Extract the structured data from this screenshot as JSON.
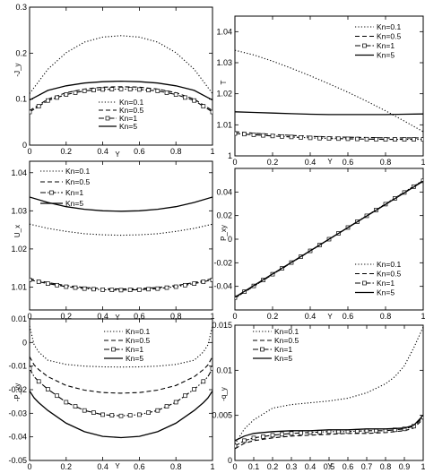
{
  "chart_data": [
    {
      "type": "line",
      "ylabel": "-J_y",
      "xlabel": "Y",
      "xlim": [
        0,
        1
      ],
      "ylim": [
        0,
        0.3
      ],
      "x_ticks": [
        0,
        0.2,
        0.4,
        0.6,
        0.8,
        1
      ],
      "y_ticks": [
        0,
        0.1,
        0.2,
        0.3
      ],
      "x_tick_labels": [
        "0",
        "0.2",
        "0.4",
        "0.6",
        "0.8",
        "1"
      ],
      "y_tick_labels": [
        "0",
        "0.1",
        "0.2",
        "0.3"
      ],
      "legend_position": "bottom-center",
      "series": [
        {
          "name": "Kn=0.1",
          "style": "dotted",
          "x": [
            0,
            0.1,
            0.2,
            0.3,
            0.4,
            0.5,
            0.6,
            0.7,
            0.8,
            0.9,
            1
          ],
          "y": [
            0.112,
            0.165,
            0.201,
            0.224,
            0.235,
            0.238,
            0.235,
            0.224,
            0.201,
            0.165,
            0.112
          ]
        },
        {
          "name": "Kn=0.5",
          "style": "dashed",
          "x": [
            0,
            0.1,
            0.2,
            0.3,
            0.4,
            0.5,
            0.6,
            0.7,
            0.8,
            0.9,
            1
          ],
          "y": [
            0.075,
            0.1,
            0.114,
            0.122,
            0.126,
            0.127,
            0.126,
            0.122,
            0.114,
            0.1,
            0.075
          ]
        },
        {
          "name": "Kn=1",
          "style": "dashdot-square",
          "x": [
            0,
            0.1,
            0.2,
            0.3,
            0.4,
            0.5,
            0.6,
            0.7,
            0.8,
            0.9,
            1
          ],
          "y": [
            0.072,
            0.097,
            0.11,
            0.118,
            0.121,
            0.122,
            0.121,
            0.118,
            0.11,
            0.097,
            0.072
          ]
        },
        {
          "name": "Kn=5",
          "style": "solid",
          "x": [
            0,
            0.1,
            0.2,
            0.3,
            0.4,
            0.5,
            0.6,
            0.7,
            0.8,
            0.9,
            1
          ],
          "y": [
            0.098,
            0.119,
            0.129,
            0.135,
            0.138,
            0.139,
            0.138,
            0.135,
            0.129,
            0.119,
            0.098
          ]
        }
      ]
    },
    {
      "type": "line",
      "ylabel": "T",
      "xlabel": "Y",
      "xlim": [
        0,
        1
      ],
      "ylim": [
        1,
        1.045
      ],
      "x_ticks": [
        0,
        0.2,
        0.4,
        0.6,
        0.8,
        1
      ],
      "y_ticks": [
        1,
        1.01,
        1.02,
        1.03,
        1.04
      ],
      "x_tick_labels": [
        "0",
        "0.2",
        "0.4",
        "0.6",
        "0.8",
        "1"
      ],
      "y_tick_labels": [
        "1",
        "1.01",
        "1.02",
        "1.03",
        "1.04"
      ],
      "legend_position": "top-right",
      "series": [
        {
          "name": "Kn=0.1",
          "style": "dotted",
          "x": [
            0,
            0.1,
            0.2,
            0.3,
            0.4,
            0.5,
            0.6,
            0.7,
            0.8,
            0.9,
            1
          ],
          "y": [
            1.034,
            1.0325,
            1.0305,
            1.0282,
            1.0258,
            1.0232,
            1.0205,
            1.0176,
            1.0145,
            1.0112,
            1.0078
          ]
        },
        {
          "name": "Kn=0.5",
          "style": "dashed",
          "x": [
            0,
            0.1,
            0.2,
            0.3,
            0.4,
            0.5,
            0.6,
            0.7,
            0.8,
            0.9,
            1
          ],
          "y": [
            1.0078,
            1.0073,
            1.0069,
            1.0066,
            1.0063,
            1.0061,
            1.006,
            1.0059,
            1.0058,
            1.0058,
            1.0058
          ]
        },
        {
          "name": "Kn=1",
          "style": "dashdot-square",
          "x": [
            0,
            0.1,
            0.2,
            0.3,
            0.4,
            0.5,
            0.6,
            0.7,
            0.8,
            0.9,
            1
          ],
          "y": [
            1.0072,
            1.0068,
            1.0064,
            1.0061,
            1.0058,
            1.0056,
            1.0055,
            1.0054,
            1.0053,
            1.0053,
            1.0053
          ]
        },
        {
          "name": "Kn=5",
          "style": "solid",
          "x": [
            0,
            0.1,
            0.2,
            0.3,
            0.4,
            0.5,
            0.6,
            0.7,
            0.8,
            0.9,
            1
          ],
          "y": [
            1.0142,
            1.014,
            1.0138,
            1.0136,
            1.0134,
            1.0133,
            1.0133,
            1.0133,
            1.0133,
            1.0134,
            1.0135
          ]
        }
      ]
    },
    {
      "type": "line",
      "ylabel": "U_x",
      "xlabel": "Y",
      "xlim": [
        0,
        1
      ],
      "ylim": [
        1.004,
        1.043
      ],
      "x_ticks": [
        0,
        0.2,
        0.4,
        0.6,
        0.8,
        1
      ],
      "y_ticks": [
        1.01,
        1.02,
        1.03,
        1.04
      ],
      "x_tick_labels": [
        "0",
        "0.2",
        "0.4",
        "0.6",
        "0.8",
        "1"
      ],
      "y_tick_labels": [
        "1.01",
        "1.02",
        "1.03",
        "1.04"
      ],
      "legend_position": "top-left",
      "series": [
        {
          "name": "Kn=0.1",
          "style": "dotted",
          "x": [
            0,
            0.1,
            0.2,
            0.3,
            0.4,
            0.5,
            0.6,
            0.7,
            0.8,
            0.9,
            1
          ],
          "y": [
            1.0265,
            1.0254,
            1.0246,
            1.024,
            1.0237,
            1.0236,
            1.0237,
            1.024,
            1.0246,
            1.0254,
            1.0265
          ]
        },
        {
          "name": "Kn=0.5",
          "style": "dashed",
          "x": [
            0,
            0.1,
            0.2,
            0.3,
            0.4,
            0.5,
            0.6,
            0.7,
            0.8,
            0.9,
            1
          ],
          "y": [
            1.0122,
            1.0112,
            1.0104,
            1.0099,
            1.0096,
            1.0095,
            1.0096,
            1.0099,
            1.0104,
            1.0112,
            1.0122
          ]
        },
        {
          "name": "Kn=1",
          "style": "dashdot-square",
          "x": [
            0,
            0.1,
            0.2,
            0.3,
            0.4,
            0.5,
            0.6,
            0.7,
            0.8,
            0.9,
            1
          ],
          "y": [
            1.0119,
            1.0109,
            1.0101,
            1.0096,
            1.0093,
            1.0092,
            1.0093,
            1.0096,
            1.0101,
            1.0109,
            1.0119
          ]
        },
        {
          "name": "Kn=5",
          "style": "solid",
          "x": [
            0,
            0.1,
            0.2,
            0.3,
            0.4,
            0.5,
            0.6,
            0.7,
            0.8,
            0.9,
            1
          ],
          "y": [
            1.0336,
            1.0322,
            1.0311,
            1.0304,
            1.03,
            1.0299,
            1.03,
            1.0304,
            1.0311,
            1.0322,
            1.0336
          ]
        }
      ]
    },
    {
      "type": "line",
      "ylabel": "P_xy",
      "xlabel": "Y",
      "xlim": [
        0,
        1
      ],
      "ylim": [
        -0.06,
        0.06
      ],
      "x_ticks": [
        0,
        0.2,
        0.4,
        0.6,
        0.8,
        1
      ],
      "y_ticks": [
        -0.04,
        -0.02,
        0,
        0.02,
        0.04
      ],
      "x_tick_labels": [
        "0",
        "0.2",
        "0.4",
        "0.6",
        "0.8",
        "1"
      ],
      "y_tick_labels": [
        "-0.04",
        "-0.02",
        "0",
        "0.02",
        "0.04"
      ],
      "legend_position": "bottom-right",
      "series": [
        {
          "name": "Kn=0.1",
          "style": "dotted",
          "x": [
            0,
            0.2,
            0.4,
            0.6,
            0.8,
            1
          ],
          "y": [
            -0.05,
            -0.03,
            -0.01,
            0.01,
            0.03,
            0.05
          ]
        },
        {
          "name": "Kn=0.5",
          "style": "dashed",
          "x": [
            0,
            0.2,
            0.4,
            0.6,
            0.8,
            1
          ],
          "y": [
            -0.0498,
            -0.0299,
            -0.01,
            0.0099,
            0.0298,
            0.0497
          ]
        },
        {
          "name": "Kn=1",
          "style": "dashdot-square",
          "x": [
            0,
            0.2,
            0.4,
            0.6,
            0.8,
            1
          ],
          "y": [
            -0.0495,
            -0.0297,
            -0.0099,
            0.0099,
            0.0297,
            0.0495
          ]
        },
        {
          "name": "Kn=5",
          "style": "solid",
          "x": [
            0,
            0.2,
            0.4,
            0.6,
            0.8,
            1
          ],
          "y": [
            -0.0492,
            -0.0295,
            -0.0098,
            0.0098,
            0.0295,
            0.0492
          ]
        }
      ]
    },
    {
      "type": "line",
      "ylabel": "-P_yy",
      "xlabel": "Y",
      "xlim": [
        0,
        1
      ],
      "ylim": [
        -0.05,
        0.01
      ],
      "x_ticks": [
        0,
        0.2,
        0.4,
        0.6,
        0.8,
        1
      ],
      "y_ticks": [
        -0.05,
        -0.04,
        -0.03,
        -0.02,
        -0.01,
        0,
        0.01
      ],
      "x_tick_labels": [
        "0",
        "0.2",
        "0.4",
        "0.6",
        "0.8",
        "1"
      ],
      "y_tick_labels": [
        "-0.05",
        "-0.04",
        "-0.03",
        "-0.02",
        "-0.01",
        "0",
        "0.01"
      ],
      "legend_position": "top-right",
      "series": [
        {
          "name": "Kn=0.1",
          "style": "dotted",
          "x": [
            0,
            0.025,
            0.05,
            0.1,
            0.2,
            0.3,
            0.4,
            0.5,
            0.6,
            0.7,
            0.8,
            0.9,
            0.95,
            0.975,
            1
          ],
          "y": [
            0.007,
            -0.001,
            -0.004,
            -0.0075,
            -0.0093,
            -0.01,
            -0.0103,
            -0.0104,
            -0.0103,
            -0.01,
            -0.0093,
            -0.0075,
            -0.004,
            -0.001,
            0.007
          ]
        },
        {
          "name": "Kn=0.5",
          "style": "dashed",
          "x": [
            0,
            0.025,
            0.05,
            0.1,
            0.2,
            0.3,
            0.4,
            0.5,
            0.6,
            0.7,
            0.8,
            0.9,
            0.95,
            0.975,
            1
          ],
          "y": [
            -0.006,
            -0.0095,
            -0.0115,
            -0.0145,
            -0.0182,
            -0.0202,
            -0.0212,
            -0.0215,
            -0.0212,
            -0.0202,
            -0.0182,
            -0.0145,
            -0.0115,
            -0.0095,
            -0.006
          ]
        },
        {
          "name": "Kn=1",
          "style": "dashdot-square",
          "x": [
            0,
            0.025,
            0.05,
            0.1,
            0.2,
            0.3,
            0.4,
            0.5,
            0.6,
            0.7,
            0.8,
            0.9,
            0.95,
            0.975,
            1
          ],
          "y": [
            -0.011,
            -0.0145,
            -0.0165,
            -0.0198,
            -0.0253,
            -0.0288,
            -0.0306,
            -0.0311,
            -0.0306,
            -0.0288,
            -0.0253,
            -0.0198,
            -0.0165,
            -0.0145,
            -0.011
          ]
        },
        {
          "name": "Kn=5",
          "style": "solid",
          "x": [
            0,
            0.025,
            0.05,
            0.1,
            0.2,
            0.3,
            0.4,
            0.5,
            0.6,
            0.7,
            0.8,
            0.9,
            0.95,
            0.975,
            1
          ],
          "y": [
            -0.0205,
            -0.0235,
            -0.0255,
            -0.0288,
            -0.0342,
            -0.0378,
            -0.0398,
            -0.0403,
            -0.0398,
            -0.0378,
            -0.0342,
            -0.0288,
            -0.0255,
            -0.0235,
            -0.0205
          ]
        }
      ]
    },
    {
      "type": "line",
      "ylabel": "-q_y",
      "xlabel": "Y",
      "xlim": [
        0,
        1
      ],
      "ylim": [
        0,
        0.015
      ],
      "x_ticks": [
        0,
        0.1,
        0.2,
        0.3,
        0.4,
        0.5,
        0.6,
        0.7,
        0.8,
        0.9,
        1
      ],
      "y_ticks": [
        0,
        0.005,
        0.01,
        0.015
      ],
      "x_tick_labels": [
        "0",
        "0.1",
        "0.2",
        "0.3",
        "0.4",
        "0.5",
        "0.6",
        "0.7",
        "0.8",
        "0.9",
        "1"
      ],
      "y_tick_labels": [
        "0",
        "0.005",
        "0.01",
        "0.015"
      ],
      "legend_position": "top-left",
      "series": [
        {
          "name": "Kn=0.1",
          "style": "dotted",
          "x": [
            0,
            0.05,
            0.1,
            0.2,
            0.3,
            0.4,
            0.5,
            0.6,
            0.7,
            0.8,
            0.85,
            0.9,
            0.95,
            1
          ],
          "y": [
            0.0018,
            0.0035,
            0.0045,
            0.0058,
            0.0062,
            0.0064,
            0.0066,
            0.0069,
            0.0075,
            0.0085,
            0.0093,
            0.0105,
            0.0125,
            0.0148
          ]
        },
        {
          "name": "Kn=0.5",
          "style": "dashed",
          "x": [
            0,
            0.05,
            0.1,
            0.2,
            0.3,
            0.4,
            0.5,
            0.6,
            0.7,
            0.8,
            0.9,
            0.95,
            1
          ],
          "y": [
            0.0013,
            0.0019,
            0.0022,
            0.0025,
            0.0027,
            0.0028,
            0.0029,
            0.003,
            0.003,
            0.0031,
            0.0033,
            0.0036,
            0.0046
          ]
        },
        {
          "name": "Kn=1",
          "style": "dashdot-square",
          "x": [
            0,
            0.05,
            0.1,
            0.2,
            0.3,
            0.4,
            0.5,
            0.6,
            0.7,
            0.8,
            0.9,
            0.95,
            1
          ],
          "y": [
            0.0016,
            0.0022,
            0.0025,
            0.0028,
            0.003,
            0.0031,
            0.0032,
            0.0032,
            0.0033,
            0.0033,
            0.0035,
            0.0038,
            0.0048
          ]
        },
        {
          "name": "Kn=5",
          "style": "solid",
          "x": [
            0,
            0.05,
            0.1,
            0.2,
            0.3,
            0.4,
            0.5,
            0.6,
            0.7,
            0.8,
            0.9,
            0.95,
            1
          ],
          "y": [
            0.0022,
            0.0027,
            0.003,
            0.0032,
            0.0033,
            0.0033,
            0.0034,
            0.0034,
            0.0035,
            0.0035,
            0.0036,
            0.0039,
            0.005
          ]
        }
      ]
    }
  ]
}
